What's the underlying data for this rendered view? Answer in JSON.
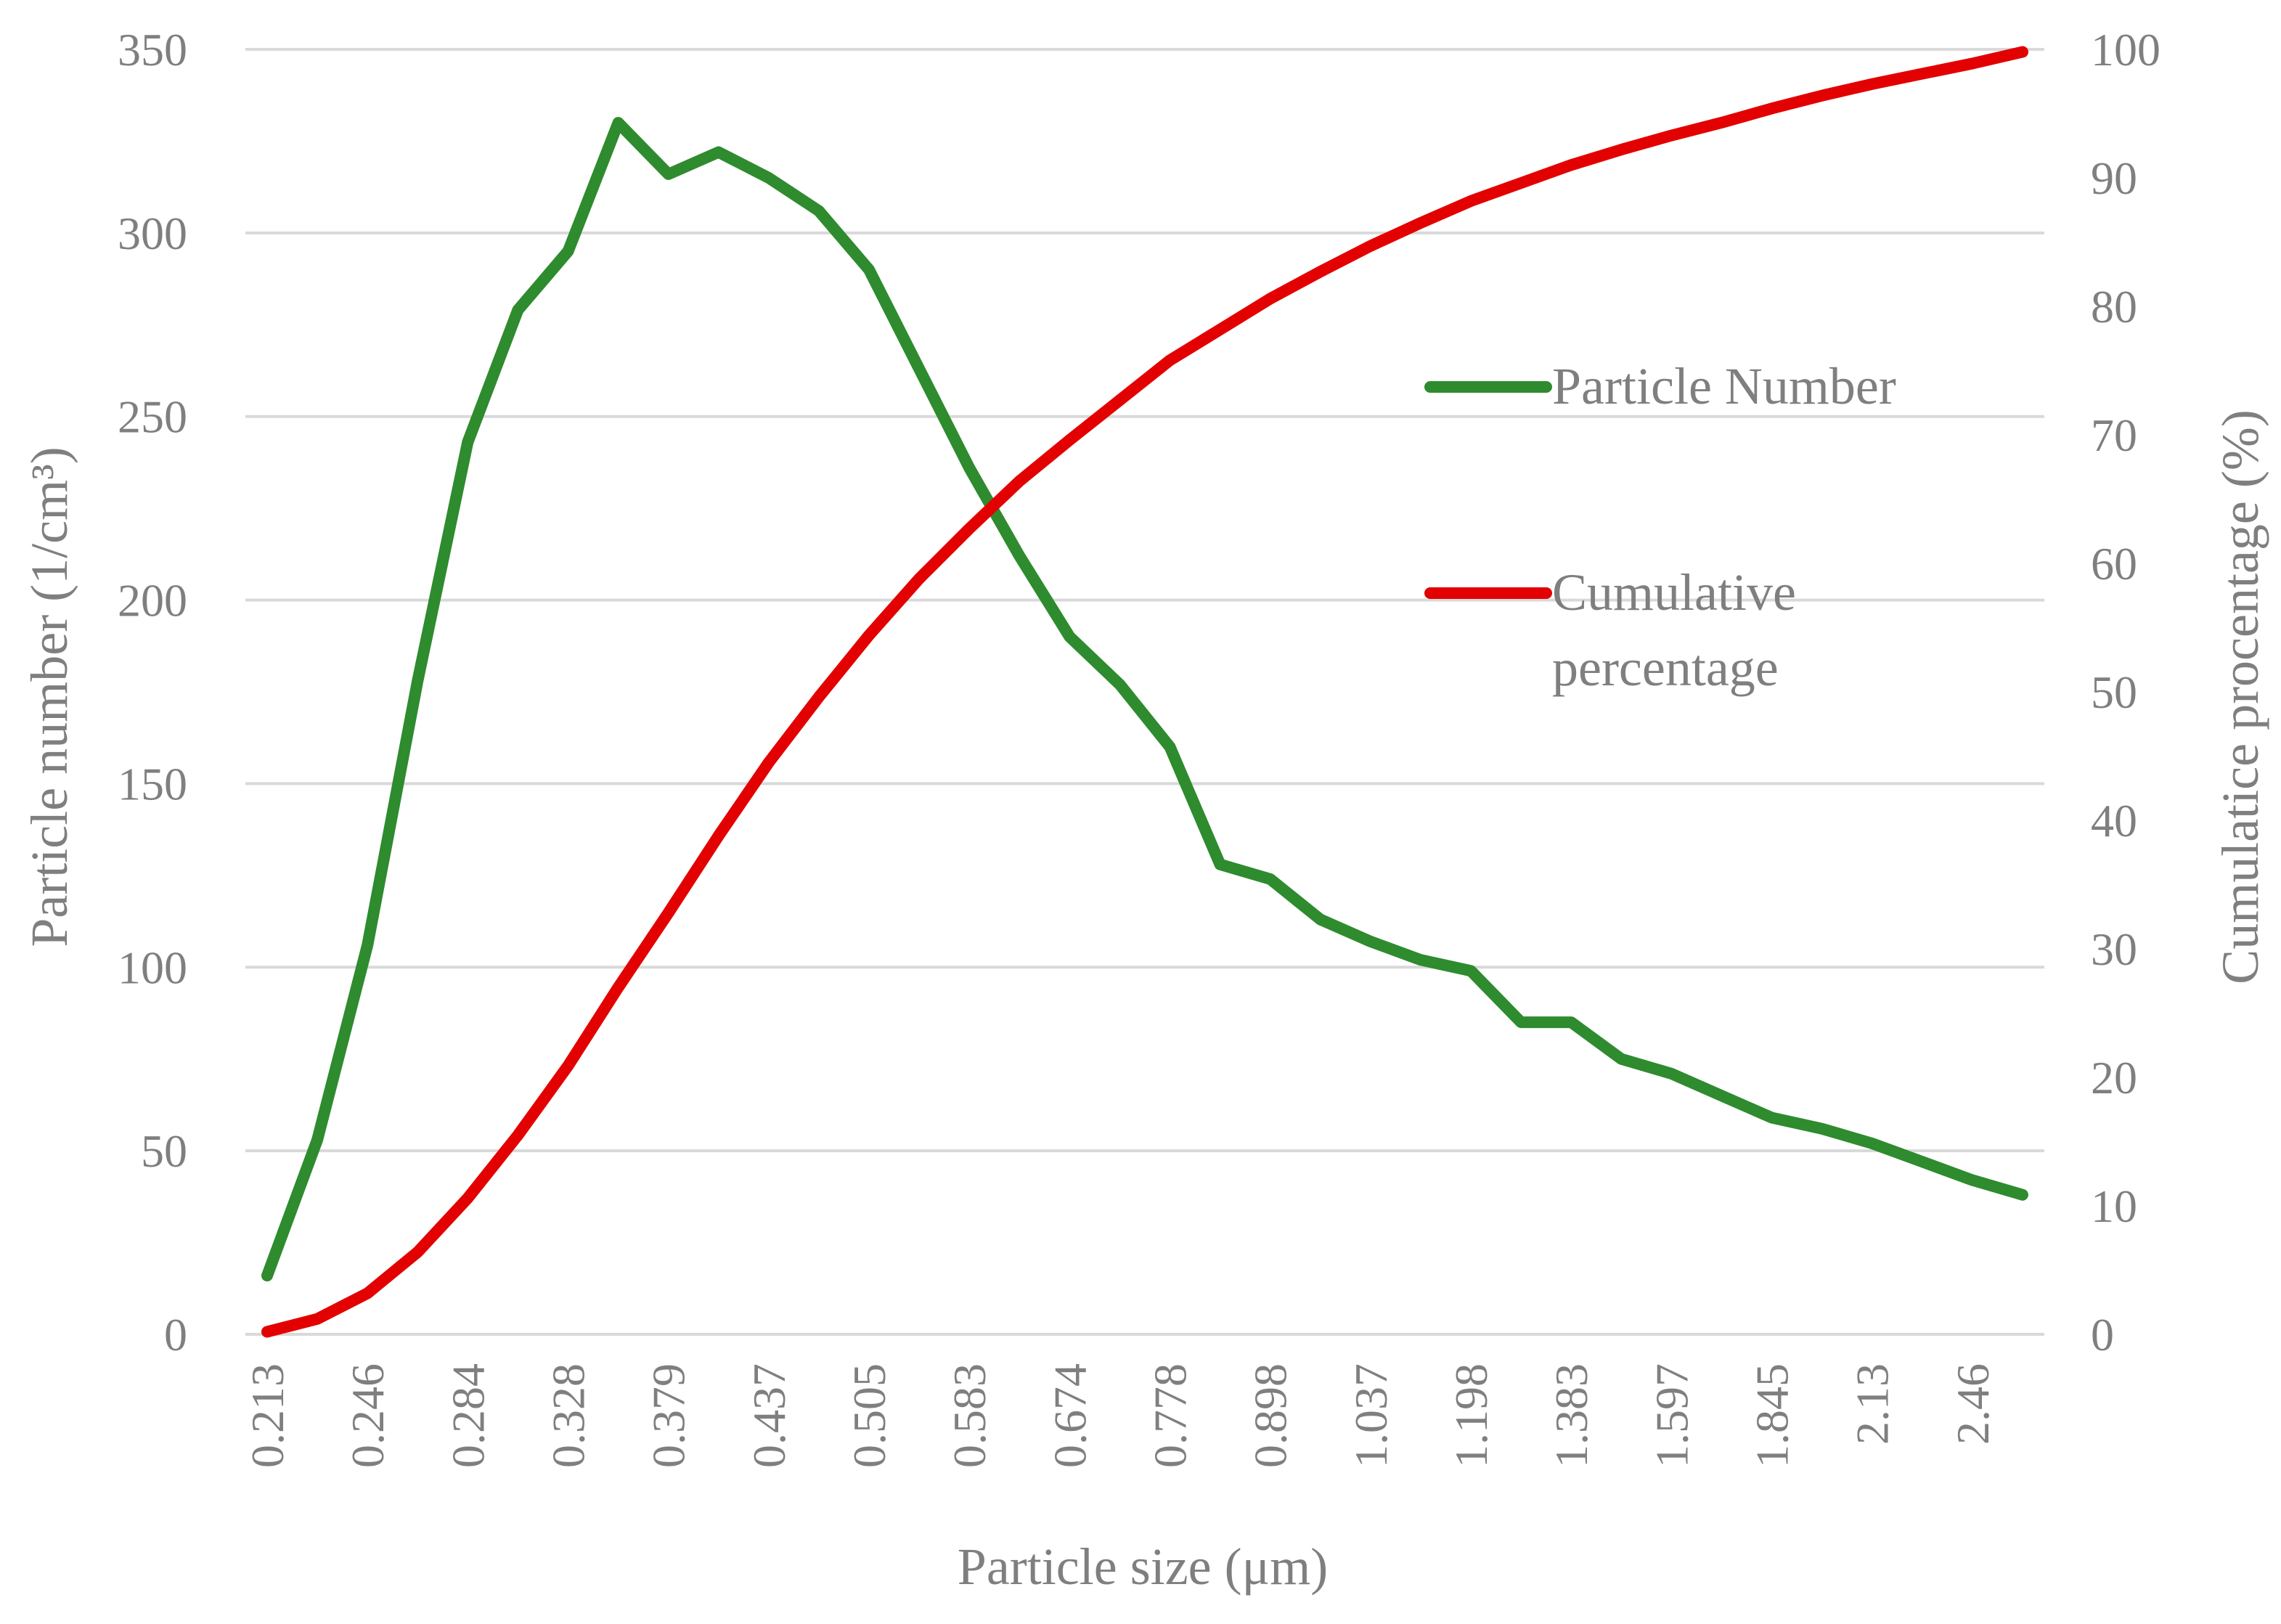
{
  "chart_data": {
    "type": "line",
    "xlabel": "Particle size (μm)",
    "ylabel_left": "Particle number (1/cm³)",
    "ylabel_right": "Cumulatice procentage (%)",
    "ylim_left": [
      0,
      350
    ],
    "ylim_right": [
      0,
      100
    ],
    "yticks_left": [
      "0",
      "50",
      "100",
      "150",
      "200",
      "250",
      "300",
      "350"
    ],
    "yticks_right": [
      "0",
      "10",
      "20",
      "30",
      "40",
      "50",
      "60",
      "70",
      "80",
      "90",
      "100"
    ],
    "grid": true,
    "legend_position": "right",
    "categories": [
      "0.213",
      "",
      "0.246",
      "",
      "0.284",
      "",
      "0.328",
      "",
      "0.379",
      "",
      "0.437",
      "",
      "0.505",
      "",
      "0.583",
      "",
      "0.674",
      "",
      "0.778",
      "",
      "0.898",
      "",
      "1.037",
      "",
      "1.198",
      "",
      "1.383",
      "",
      "1.597",
      "",
      "1.845",
      "",
      "2.13",
      "",
      "2.46",
      ""
    ],
    "series": [
      {
        "name": "Particle Number",
        "axis": "left",
        "color": "#2e8b2e",
        "values": [
          16,
          53,
          106,
          178,
          243,
          279,
          295,
          330,
          316,
          322,
          315,
          306,
          290,
          263,
          236,
          212,
          190,
          177,
          160,
          128,
          124,
          113,
          107,
          102,
          99,
          85,
          85,
          75,
          71,
          65,
          59,
          56,
          52,
          47,
          42,
          38
        ]
      },
      {
        "name": "Cumulative percentage",
        "legend_lines": [
          "Cumulative",
          "percentage"
        ],
        "axis": "right",
        "color": "#e30000",
        "values": [
          0.2,
          1.2,
          3.2,
          6.4,
          10.6,
          15.5,
          20.9,
          27.0,
          32.8,
          38.8,
          44.5,
          49.6,
          54.4,
          58.8,
          62.7,
          66.4,
          69.6,
          72.7,
          75.8,
          78.2,
          80.6,
          82.7,
          84.7,
          86.5,
          88.2,
          89.6,
          91.0,
          92.2,
          93.3,
          94.3,
          95.4,
          96.4,
          97.3,
          98.1,
          98.9,
          99.8
        ]
      }
    ]
  }
}
